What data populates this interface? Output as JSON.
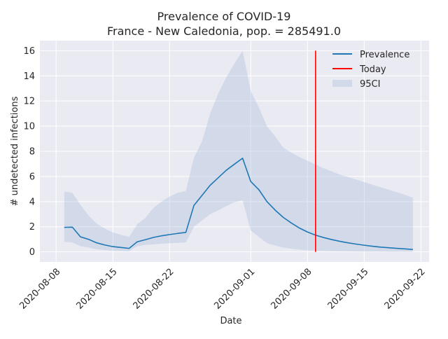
{
  "chart_data": {
    "type": "line",
    "title": "Prevalence of COVID-19",
    "subtitle": "France - New Caledonia, pop. = 285491.0",
    "xlabel": "Date",
    "ylabel": "# undetected infections",
    "x_ticks": [
      "2020-08-08",
      "2020-08-15",
      "2020-08-22",
      "2020-09-01",
      "2020-09-08",
      "2020-09-15",
      "2020-09-22"
    ],
    "y_ticks": [
      0,
      2,
      4,
      6,
      8,
      10,
      12,
      14,
      16
    ],
    "xlim": [
      "2020-08-06",
      "2020-09-23"
    ],
    "ylim": [
      -0.8,
      16.8
    ],
    "grid": true,
    "legend_position": "top-right",
    "legend": [
      "Prevalence",
      "Today",
      "95CI"
    ],
    "today": "2020-09-09",
    "colors": {
      "prevalence": "#1f77b4",
      "today": "#ff0000",
      "ci": "#b0c4de",
      "plot_bg": "#eaeaf2",
      "grid": "#ffffff"
    },
    "series": [
      {
        "name": "Prevalence",
        "x": [
          "2020-08-09",
          "2020-08-10",
          "2020-08-11",
          "2020-08-12",
          "2020-08-13",
          "2020-08-14",
          "2020-08-15",
          "2020-08-16",
          "2020-08-17",
          "2020-08-18",
          "2020-08-19",
          "2020-08-20",
          "2020-08-21",
          "2020-08-22",
          "2020-08-23",
          "2020-08-24",
          "2020-08-25",
          "2020-08-26",
          "2020-08-27",
          "2020-08-28",
          "2020-08-29",
          "2020-08-30",
          "2020-08-31",
          "2020-09-01",
          "2020-09-02",
          "2020-09-03",
          "2020-09-04",
          "2020-09-05",
          "2020-09-06",
          "2020-09-07",
          "2020-09-08",
          "2020-09-09",
          "2020-09-10",
          "2020-09-11",
          "2020-09-12",
          "2020-09-13",
          "2020-09-14",
          "2020-09-15",
          "2020-09-16",
          "2020-09-17",
          "2020-09-18",
          "2020-09-19",
          "2020-09-20",
          "2020-09-21"
        ],
        "y": [
          1.95,
          1.97,
          1.2,
          1.0,
          0.72,
          0.55,
          0.42,
          0.35,
          0.28,
          0.8,
          0.97,
          1.15,
          1.28,
          1.38,
          1.47,
          1.55,
          3.7,
          4.5,
          5.3,
          5.9,
          6.5,
          6.98,
          7.45,
          5.6,
          4.95,
          4.0,
          3.33,
          2.75,
          2.3,
          1.9,
          1.58,
          1.33,
          1.14,
          0.98,
          0.84,
          0.72,
          0.62,
          0.53,
          0.45,
          0.38,
          0.33,
          0.28,
          0.24,
          0.19
        ]
      },
      {
        "name": "95CI",
        "x": [
          "2020-08-09",
          "2020-08-10",
          "2020-08-11",
          "2020-08-12",
          "2020-08-13",
          "2020-08-14",
          "2020-08-15",
          "2020-08-16",
          "2020-08-17",
          "2020-08-18",
          "2020-08-19",
          "2020-08-20",
          "2020-08-21",
          "2020-08-22",
          "2020-08-23",
          "2020-08-24",
          "2020-08-25",
          "2020-08-26",
          "2020-08-27",
          "2020-08-28",
          "2020-08-29",
          "2020-08-30",
          "2020-08-31",
          "2020-09-01",
          "2020-09-02",
          "2020-09-03",
          "2020-09-04",
          "2020-09-05",
          "2020-09-06",
          "2020-09-07",
          "2020-09-08",
          "2020-09-09",
          "2020-09-10",
          "2020-09-11",
          "2020-09-12",
          "2020-09-13",
          "2020-09-14",
          "2020-09-15",
          "2020-09-16",
          "2020-09-17",
          "2020-09-18",
          "2020-09-19",
          "2020-09-20",
          "2020-09-21"
        ],
        "lower": [
          0.8,
          0.75,
          0.45,
          0.35,
          0.2,
          0.15,
          0.1,
          0.08,
          0.05,
          0.45,
          0.55,
          0.6,
          0.65,
          0.7,
          0.72,
          0.75,
          2.0,
          2.5,
          3.0,
          3.3,
          3.65,
          3.95,
          4.1,
          1.7,
          1.2,
          0.7,
          0.5,
          0.35,
          0.25,
          0.18,
          0.12,
          0.1,
          0.08,
          0.06,
          0.05,
          0.04,
          0.03,
          0.02,
          0.02,
          0.02,
          0.01,
          0.01,
          0.01,
          0.01
        ],
        "upper": [
          4.8,
          4.7,
          3.75,
          2.9,
          2.25,
          1.85,
          1.55,
          1.35,
          1.2,
          2.2,
          2.7,
          3.5,
          4.0,
          4.4,
          4.7,
          4.85,
          7.5,
          8.8,
          11.0,
          12.6,
          13.9,
          15.0,
          16.0,
          12.8,
          11.5,
          10.0,
          9.2,
          8.3,
          7.9,
          7.55,
          7.25,
          6.95,
          6.65,
          6.4,
          6.15,
          5.95,
          5.75,
          5.55,
          5.35,
          5.15,
          4.95,
          4.75,
          4.55,
          4.3
        ]
      }
    ]
  }
}
